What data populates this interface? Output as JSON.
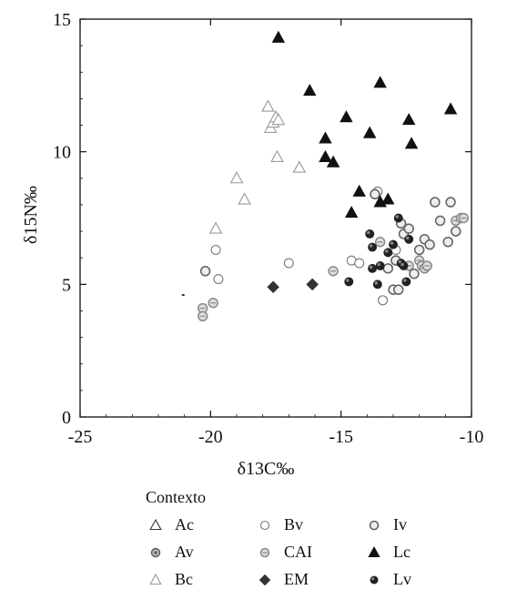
{
  "chart_data": {
    "type": "scatter",
    "title": "",
    "xlabel": "δ13C‰",
    "ylabel": "δ15N‰",
    "xlim": [
      -25,
      -10
    ],
    "ylim": [
      0,
      15
    ],
    "xticks": [
      "-25",
      "-20",
      "-15",
      "-10"
    ],
    "yticks": [
      "0",
      "5",
      "10",
      "15"
    ],
    "grid": false,
    "legend": {
      "title": "Contexto",
      "placement": "bottom",
      "columns": 3
    },
    "series": [
      {
        "name": "Ac",
        "marker": "triangle",
        "style": "outline-dark",
        "color": "#333333",
        "points": []
      },
      {
        "name": "Av",
        "marker": "circle",
        "style": "gray-ring",
        "color": "#777777",
        "points": []
      },
      {
        "name": "Bc",
        "marker": "triangle",
        "style": "outline-light",
        "color": "#999999",
        "points": [
          [
            -19.8,
            7.1
          ],
          [
            -19.0,
            9.0
          ],
          [
            -18.7,
            8.2
          ],
          [
            -17.8,
            11.7
          ],
          [
            -17.7,
            10.9
          ],
          [
            -17.6,
            11.1
          ],
          [
            -17.5,
            11.3
          ],
          [
            -17.4,
            11.2
          ],
          [
            -17.45,
            9.8
          ],
          [
            -16.6,
            9.4
          ]
        ]
      },
      {
        "name": "Bv",
        "marker": "circle",
        "style": "outline",
        "color": "#777777",
        "points": [
          [
            -19.8,
            6.3
          ],
          [
            -19.7,
            5.2
          ],
          [
            -17.0,
            5.8
          ],
          [
            -14.6,
            5.9
          ],
          [
            -14.3,
            5.8
          ],
          [
            -13.6,
            8.5
          ],
          [
            -13.4,
            4.4
          ],
          [
            -12.9,
            6.3
          ]
        ]
      },
      {
        "name": "CAI",
        "marker": "circle",
        "style": "striped",
        "color": "#888888",
        "points": [
          [
            -20.3,
            4.1
          ],
          [
            -20.3,
            3.8
          ],
          [
            -19.9,
            4.3
          ],
          [
            -15.3,
            5.5
          ],
          [
            -13.5,
            6.6
          ],
          [
            -12.4,
            5.7
          ],
          [
            -12.0,
            5.9
          ],
          [
            -11.9,
            5.7
          ],
          [
            -11.8,
            5.6
          ],
          [
            -11.7,
            5.7
          ],
          [
            -10.6,
            7.4
          ],
          [
            -10.4,
            7.5
          ],
          [
            -10.3,
            7.5
          ]
        ]
      },
      {
        "name": "EM",
        "marker": "diamond",
        "style": "filled",
        "color": "#333333",
        "points": [
          [
            -17.6,
            4.9
          ],
          [
            -16.1,
            5.0
          ]
        ]
      },
      {
        "name": "Iv",
        "marker": "circle",
        "style": "ring",
        "color": "#666666",
        "points": [
          [
            -20.2,
            5.5
          ],
          [
            -13.7,
            8.4
          ],
          [
            -13.2,
            5.6
          ],
          [
            -13.0,
            4.8
          ],
          [
            -12.8,
            4.8
          ],
          [
            -12.9,
            5.9
          ],
          [
            -12.7,
            7.3
          ],
          [
            -12.6,
            6.9
          ],
          [
            -12.4,
            7.1
          ],
          [
            -12.2,
            5.4
          ],
          [
            -12.0,
            6.3
          ],
          [
            -11.8,
            6.7
          ],
          [
            -11.6,
            6.5
          ],
          [
            -11.4,
            8.1
          ],
          [
            -11.2,
            7.4
          ],
          [
            -10.9,
            6.6
          ],
          [
            -10.8,
            8.1
          ],
          [
            -10.6,
            7.0
          ]
        ]
      },
      {
        "name": "Lc",
        "marker": "triangle",
        "style": "filled",
        "color": "#111111",
        "points": [
          [
            -17.4,
            14.3
          ],
          [
            -16.2,
            12.3
          ],
          [
            -15.6,
            10.5
          ],
          [
            -15.6,
            9.8
          ],
          [
            -15.3,
            9.6
          ],
          [
            -14.8,
            11.3
          ],
          [
            -14.6,
            7.7
          ],
          [
            -14.3,
            8.5
          ],
          [
            -13.9,
            10.7
          ],
          [
            -13.5,
            12.6
          ],
          [
            -13.5,
            8.1
          ],
          [
            -13.2,
            8.2
          ],
          [
            -12.4,
            11.2
          ],
          [
            -12.3,
            10.3
          ],
          [
            -10.8,
            11.6
          ]
        ]
      },
      {
        "name": "Lv",
        "marker": "circle",
        "style": "filled",
        "color": "#222222",
        "points": [
          [
            -14.7,
            5.1
          ],
          [
            -13.9,
            6.9
          ],
          [
            -13.8,
            6.4
          ],
          [
            -13.6,
            5.0
          ],
          [
            -13.5,
            5.7
          ],
          [
            -13.2,
            6.2
          ],
          [
            -13.0,
            6.5
          ],
          [
            -12.8,
            7.5
          ],
          [
            -12.7,
            5.8
          ],
          [
            -12.6,
            5.7
          ],
          [
            -12.5,
            5.1
          ],
          [
            -12.4,
            6.7
          ],
          [
            -13.8,
            5.6
          ]
        ]
      }
    ]
  }
}
